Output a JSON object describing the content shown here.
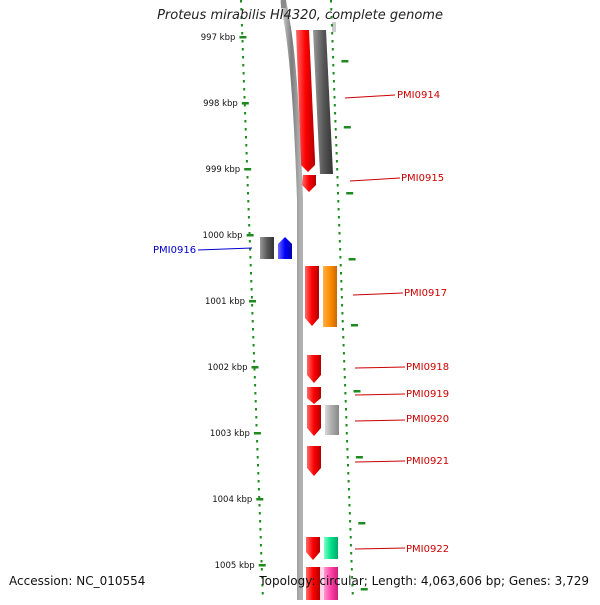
{
  "header": {
    "title": "Proteus mirabilis HI4320, complete genome"
  },
  "footer": {
    "accession": "Accession: NC_010554",
    "summary": "Topology: circular; Length: 4,063,606 bp; Genes: 3,729"
  },
  "map": {
    "ticks": [
      {
        "kbp": 997,
        "label": "997 kbp"
      },
      {
        "kbp": 998,
        "label": "998 kbp"
      },
      {
        "kbp": 999,
        "label": "999 kbp"
      },
      {
        "kbp": 1000,
        "label": "1000 kbp"
      },
      {
        "kbp": 1001,
        "label": "1001 kbp"
      },
      {
        "kbp": 1002,
        "label": "1002 kbp"
      },
      {
        "kbp": 1003,
        "label": "1003 kbp"
      },
      {
        "kbp": 1004,
        "label": "1004 kbp"
      },
      {
        "kbp": 1005,
        "label": "1005 kbp"
      }
    ],
    "genes": [
      {
        "name": "PMI0914",
        "strand": "reverse"
      },
      {
        "name": "PMI0915",
        "strand": "reverse"
      },
      {
        "name": "PMI0916",
        "strand": "forward"
      },
      {
        "name": "PMI0917",
        "strand": "reverse"
      },
      {
        "name": "PMI0918",
        "strand": "reverse"
      },
      {
        "name": "PMI0919",
        "strand": "reverse"
      },
      {
        "name": "PMI0920",
        "strand": "reverse"
      },
      {
        "name": "PMI0921",
        "strand": "reverse"
      },
      {
        "name": "PMI0922",
        "strand": "reverse"
      }
    ],
    "colors": {
      "tick": "#1f8a1f",
      "backbone": "#8c8c8c",
      "cds": "#ff0000",
      "reverse_label": "#cc0000",
      "forward_label": "#0000cc",
      "forward_cds": "#0000ff",
      "blast_dark": "#555555",
      "blast_orange": "#ff8c00",
      "blast_light": "#aaaaaa",
      "blast_green": "#00e08a",
      "blast_pink": "#ff3fa6"
    }
  }
}
